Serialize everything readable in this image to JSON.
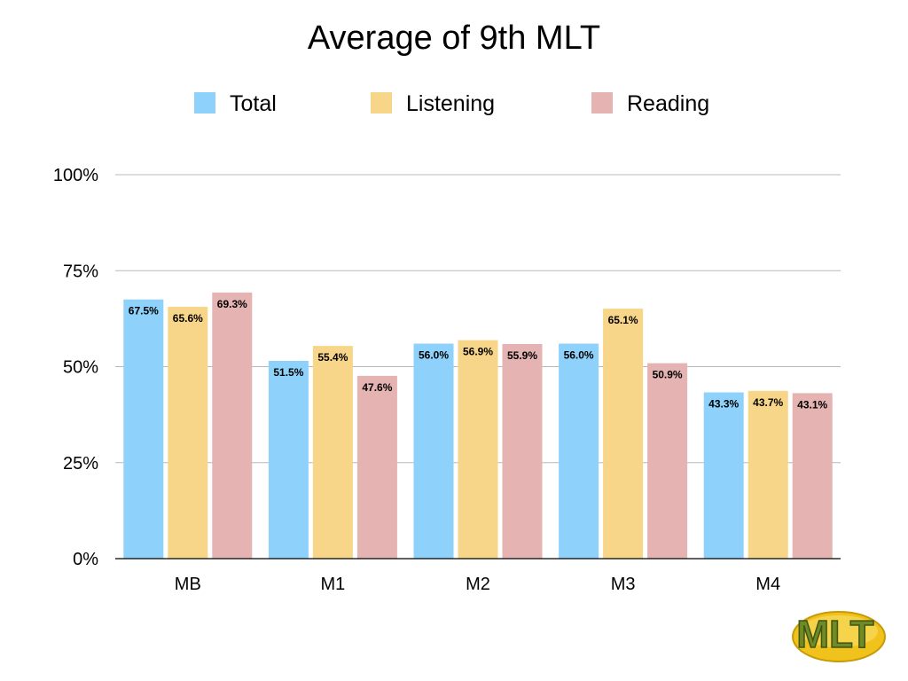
{
  "slide": {
    "title": "Average of 9th MLT",
    "logo_text": "MLT"
  },
  "chart_data": {
    "type": "bar",
    "title": "Average of 9th MLT",
    "categories": [
      "MB",
      "M1",
      "M2",
      "M3",
      "M4"
    ],
    "series": [
      {
        "name": "Total",
        "color": "#8ed2fb",
        "values": [
          67.5,
          51.5,
          56.0,
          56.0,
          43.3
        ]
      },
      {
        "name": "Listening",
        "color": "#f7d589",
        "values": [
          65.6,
          55.4,
          56.9,
          65.1,
          43.7
        ]
      },
      {
        "name": "Reading",
        "color": "#e4b3b2",
        "values": [
          69.3,
          47.6,
          55.9,
          50.9,
          43.1
        ]
      }
    ],
    "ylim": [
      0,
      100
    ],
    "yticks": [
      0,
      25,
      50,
      75,
      100
    ],
    "ytick_labels": [
      "0%",
      "25%",
      "50%",
      "75%",
      "100%"
    ],
    "data_label_suffix": "%",
    "grid": true,
    "legend_position": "top"
  }
}
